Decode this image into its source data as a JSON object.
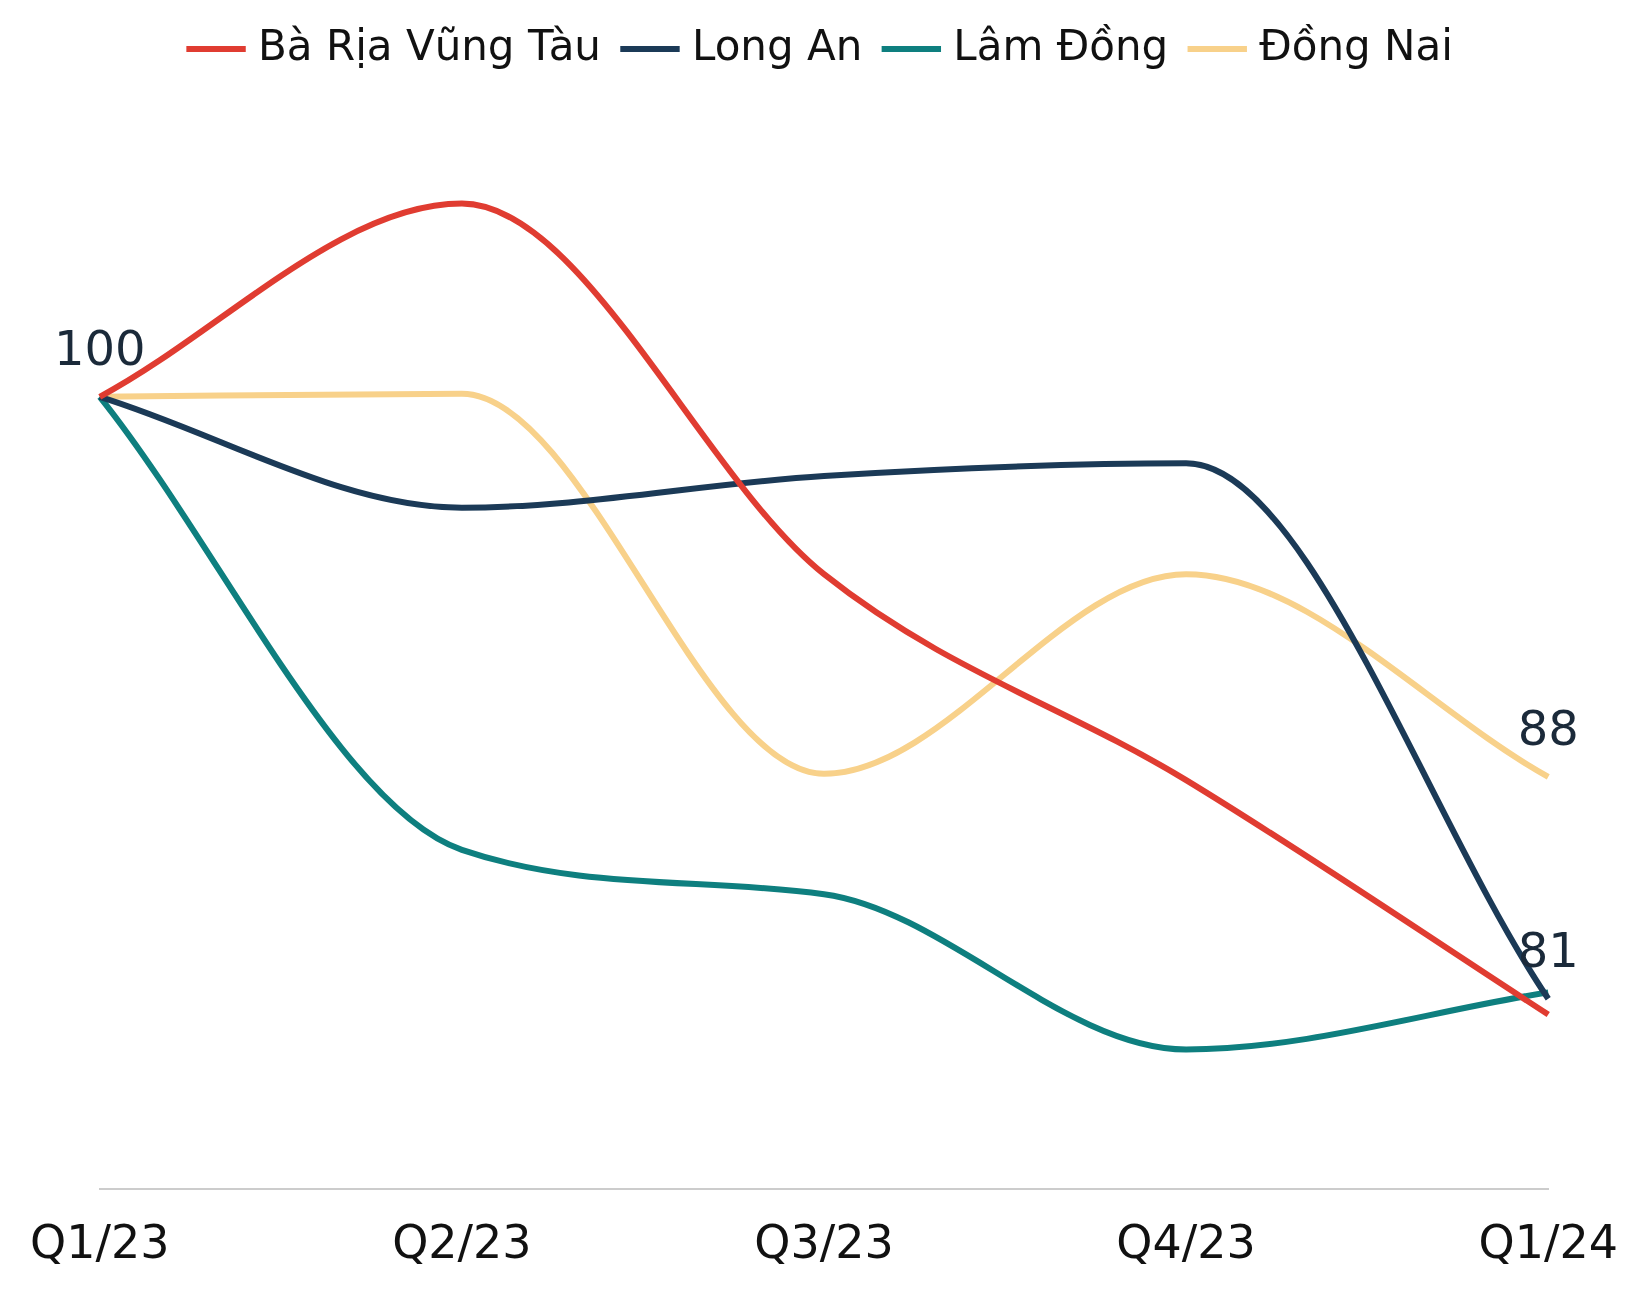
{
  "chart_data": {
    "type": "line",
    "categories": [
      "Q1/23",
      "Q2/23",
      "Q3/23",
      "Q4/23",
      "Q1/24"
    ],
    "series": [
      {
        "name": "Bà Rịa Vũng Tàu",
        "color": "#e03c31",
        "values": [
          100,
          106.1,
          94.4,
          87.9,
          80.5
        ],
        "value_labels": [
          "100",
          null,
          null,
          null,
          null
        ]
      },
      {
        "name": "Long An",
        "color": "#1b3a57",
        "values": [
          100,
          96.5,
          97.5,
          97.9,
          81
        ],
        "value_labels": [
          null,
          null,
          null,
          null,
          "81"
        ]
      },
      {
        "name": "Lâm Đồng",
        "color": "#0e7f7f",
        "values": [
          100,
          85.7,
          84.3,
          79.4,
          81.2
        ],
        "value_labels": [
          null,
          null,
          null,
          null,
          null
        ]
      },
      {
        "name": "Đồng Nai",
        "color": "#f8d18a",
        "values": [
          100,
          100.1,
          88.1,
          94.4,
          88
        ],
        "value_labels": [
          null,
          null,
          null,
          null,
          "88"
        ]
      }
    ],
    "legend": "top",
    "grid": false,
    "marker": "none",
    "line_style": "solid"
  }
}
